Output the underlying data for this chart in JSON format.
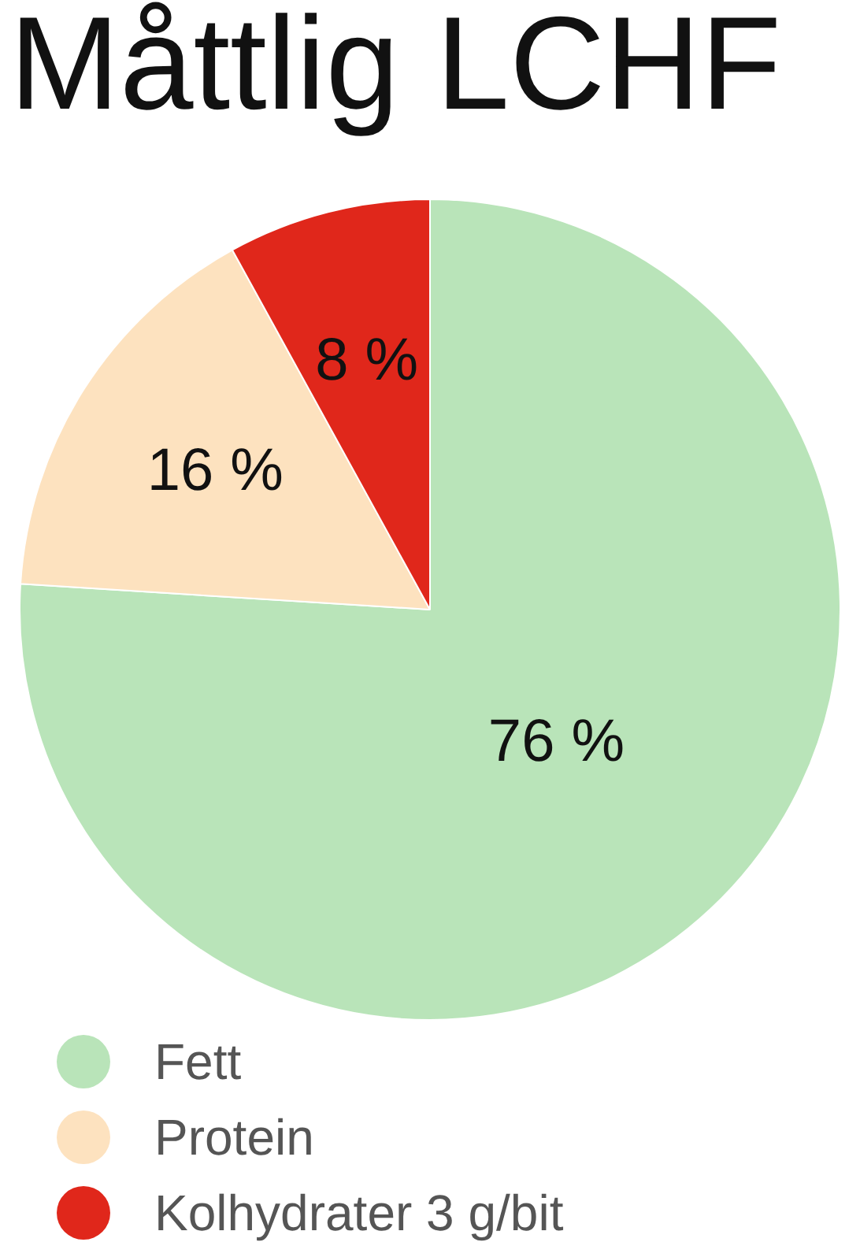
{
  "chart_data": {
    "type": "pie",
    "title": "Måttlig LCHF",
    "categories": [
      "Fett",
      "Protein",
      "Kolhydrater 3 g/bit"
    ],
    "values": [
      76,
      16,
      8
    ],
    "colors": [
      "#b9e4b9",
      "#fde2bf",
      "#e0271b"
    ],
    "value_labels": [
      "76 %",
      "16 %",
      "8 %"
    ],
    "legend": "bottom left"
  }
}
